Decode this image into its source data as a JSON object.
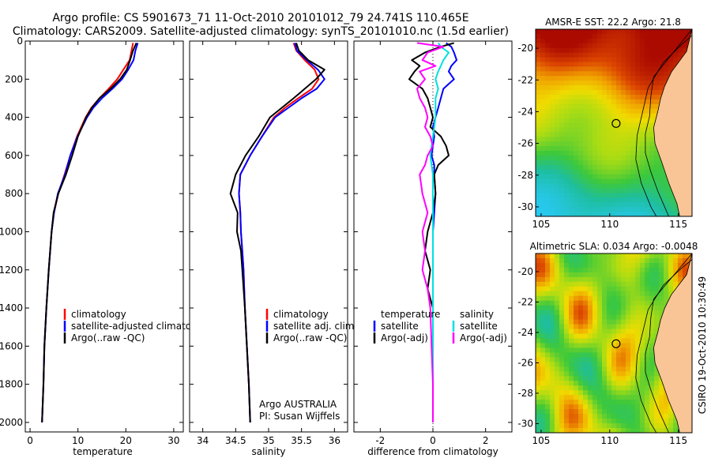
{
  "header": {
    "title_line1": "Argo profile: CS 5901673_71 11-Oct-2010 20101012_79 24.741S 110.465E",
    "title_line2": "Climatology: CARS2009. Satellite-adjusted climatology: synTS_20101010.nc (1.5d earlier)"
  },
  "credit": "CSIRO 19-Oct-2010 10:30:49",
  "colors": {
    "climatology": "#ff0000",
    "satellite": "#0000ff",
    "argo": "#000000",
    "salinity_satellite": "#00e0e0",
    "salinity_argo": "#ff00ff",
    "land": "#f9c596"
  },
  "chart_data": [
    {
      "type": "line",
      "id": "temperature",
      "xlabel": "temperature",
      "ylabel": "",
      "xlim": [
        -1,
        32
      ],
      "ylim": [
        2050,
        0
      ],
      "xticks": [
        0,
        10,
        20,
        30
      ],
      "yticks": [
        0,
        200,
        400,
        600,
        800,
        1000,
        1200,
        1400,
        1600,
        1800,
        2000
      ],
      "depth": [
        10,
        50,
        100,
        150,
        200,
        250,
        300,
        350,
        400,
        500,
        600,
        700,
        800,
        900,
        1000,
        1200,
        1400,
        1600,
        1800,
        2000
      ],
      "series": [
        {
          "name": "climatology",
          "color": "#ff0000",
          "values": [
            21.5,
            21.2,
            20.8,
            19.5,
            18.2,
            16.4,
            14.5,
            12.8,
            11.6,
            9.8,
            8.4,
            7.2,
            5.9,
            5.0,
            4.5,
            3.9,
            3.4,
            3.0,
            2.8,
            2.5
          ]
        },
        {
          "name": "satellite-adjusted climatology",
          "color": "#0000ff",
          "values": [
            22.5,
            22.0,
            21.6,
            20.5,
            19.2,
            17.2,
            15.0,
            13.2,
            11.9,
            9.9,
            8.4,
            7.3,
            5.8,
            5.0,
            4.5,
            3.9,
            3.4,
            3.0,
            2.8,
            2.5
          ]
        },
        {
          "name": "Argo(..raw -QC)",
          "color": "#000000",
          "values": [
            22.2,
            21.5,
            20.9,
            20.2,
            18.8,
            16.8,
            14.5,
            12.9,
            11.7,
            10.0,
            8.8,
            7.5,
            5.9,
            4.9,
            4.5,
            3.9,
            3.4,
            3.0,
            2.8,
            2.5
          ]
        }
      ],
      "legend": [
        "climatology",
        "satellite-adjusted climatology",
        "Argo(..raw -QC)"
      ],
      "legend_placement": "lower-right"
    },
    {
      "type": "line",
      "id": "salinity",
      "xlabel": "salinity",
      "xlim": [
        33.8,
        36.2
      ],
      "ylim": [
        2050,
        0
      ],
      "xticks": [
        34,
        34.5,
        35,
        35.5,
        36
      ],
      "xtick_labels": [
        "34",
        "34.5",
        "35",
        "35.5",
        "36"
      ],
      "depth": [
        10,
        50,
        100,
        150,
        200,
        250,
        300,
        350,
        400,
        500,
        600,
        700,
        800,
        900,
        1000,
        1100,
        1200,
        1400,
        1600,
        1800,
        2000
      ],
      "series": [
        {
          "name": "climatology",
          "color": "#ff0000",
          "values": [
            35.38,
            35.42,
            35.55,
            35.7,
            35.76,
            35.66,
            35.45,
            35.25,
            35.08,
            34.9,
            34.72,
            34.57,
            34.55,
            34.57,
            34.58,
            34.6,
            34.62,
            34.64,
            34.67,
            34.7,
            34.72
          ]
        },
        {
          "name": "satellite adj. clim.",
          "color": "#0000ff",
          "values": [
            35.4,
            35.43,
            35.58,
            35.75,
            35.85,
            35.73,
            35.5,
            35.3,
            35.1,
            34.9,
            34.72,
            34.57,
            34.55,
            34.57,
            34.58,
            34.6,
            34.62,
            34.64,
            34.67,
            34.7,
            34.72
          ]
        },
        {
          "name": "Argo(..raw -QC)",
          "color": "#000000",
          "values": [
            35.42,
            35.46,
            35.6,
            35.85,
            35.72,
            35.55,
            35.38,
            35.2,
            35.02,
            34.85,
            34.65,
            34.5,
            34.42,
            34.53,
            34.52,
            34.58,
            34.6,
            34.64,
            34.67,
            34.7,
            34.72
          ]
        }
      ],
      "legend": [
        "climatology",
        "satellite adj. clim.",
        "Argo(..raw -QC)"
      ],
      "legend_placement": "lower-right",
      "annotation": [
        "Argo AUSTRALIA",
        "PI: Susan Wijffels"
      ]
    },
    {
      "type": "line",
      "id": "difference",
      "xlabel": "difference from climatology",
      "xlim": [
        -3,
        3
      ],
      "ylim": [
        2050,
        0
      ],
      "xticks": [
        -2,
        0,
        2
      ],
      "zero_line": "dotted",
      "depth": [
        10,
        30,
        60,
        100,
        130,
        160,
        200,
        250,
        300,
        350,
        400,
        450,
        500,
        550,
        600,
        650,
        700,
        800,
        900,
        1000,
        1100,
        1200,
        1300,
        1400,
        1600,
        1800,
        2000
      ],
      "series": [
        {
          "name": "temperature satellite",
          "color": "#0000ff",
          "values": [
            0.5,
            0.7,
            0.8,
            0.9,
            0.7,
            0.6,
            0.8,
            0.4,
            0.3,
            0.2,
            0.1,
            0.0,
            0.05,
            0.0,
            -0.05,
            0.05,
            0.05,
            0.1,
            0.05,
            0.0,
            0.0,
            0.0,
            0.0,
            0.0,
            0.0,
            0.0,
            0.0
          ]
        },
        {
          "name": "temperature Argo(-adj)",
          "color": "#000000",
          "values": [
            0.8,
            0.3,
            -0.3,
            -0.8,
            -0.5,
            -0.7,
            -0.9,
            -0.4,
            -0.2,
            -0.1,
            0.0,
            -0.1,
            0.3,
            0.5,
            0.6,
            0.2,
            0.05,
            0.1,
            0.0,
            -0.2,
            -0.3,
            -0.1,
            -0.2,
            0.0,
            0.0,
            0.0,
            0.0
          ]
        },
        {
          "name": "salinity satellite",
          "color": "#00e0e0",
          "values": [
            0.2,
            0.3,
            0.6,
            0.4,
            0.3,
            0.2,
            0.1,
            0.2,
            0.1,
            0.1,
            0.1,
            0.05,
            0.0,
            -0.05,
            -0.1,
            -0.05,
            0.0,
            0.0,
            0.0,
            0.0,
            0.0,
            0.0,
            0.0,
            0.0,
            0.0,
            0.0,
            0.0
          ]
        },
        {
          "name": "salinity Argo(-adj)",
          "color": "#ff00ff",
          "values": [
            -0.6,
            0.4,
            -0.2,
            -0.4,
            0.1,
            -0.5,
            -0.3,
            -0.6,
            -0.5,
            -0.3,
            -0.2,
            -0.3,
            -0.1,
            0.0,
            -0.2,
            -0.3,
            -0.5,
            -0.4,
            -0.2,
            -0.4,
            -0.3,
            -0.4,
            -0.2,
            -0.1,
            -0.05,
            0.0,
            0.0
          ]
        }
      ],
      "legend_left": {
        "header": "temperature",
        "items": [
          "satellite",
          "Argo(-adj)"
        ]
      },
      "legend_right": {
        "header": "salinity",
        "items": [
          "satellite",
          "Argo(-adj)"
        ]
      },
      "legend_placement": "lower"
    },
    {
      "type": "heatmap",
      "id": "sst_map",
      "title": "AMSR-E SST: 22.2 Argo: 21.8",
      "xlim": [
        104.6,
        116
      ],
      "ylim": [
        -30.6,
        -18.8
      ],
      "xticks": [
        105,
        110,
        115
      ],
      "yticks": [
        -20,
        -22,
        -24,
        -26,
        -28,
        -30
      ],
      "marker": {
        "lon": 110.465,
        "lat": -24.741
      }
    },
    {
      "type": "heatmap",
      "id": "sla_map",
      "title": "Altimetric SLA: 0.034 Argo: -0.0048",
      "xlim": [
        104.6,
        116
      ],
      "ylim": [
        -30.6,
        -18.8
      ],
      "xticks": [
        105,
        110,
        115
      ],
      "yticks": [
        -20,
        -22,
        -24,
        -26,
        -28,
        -30
      ],
      "marker": {
        "lon": 110.465,
        "lat": -24.741
      }
    }
  ]
}
